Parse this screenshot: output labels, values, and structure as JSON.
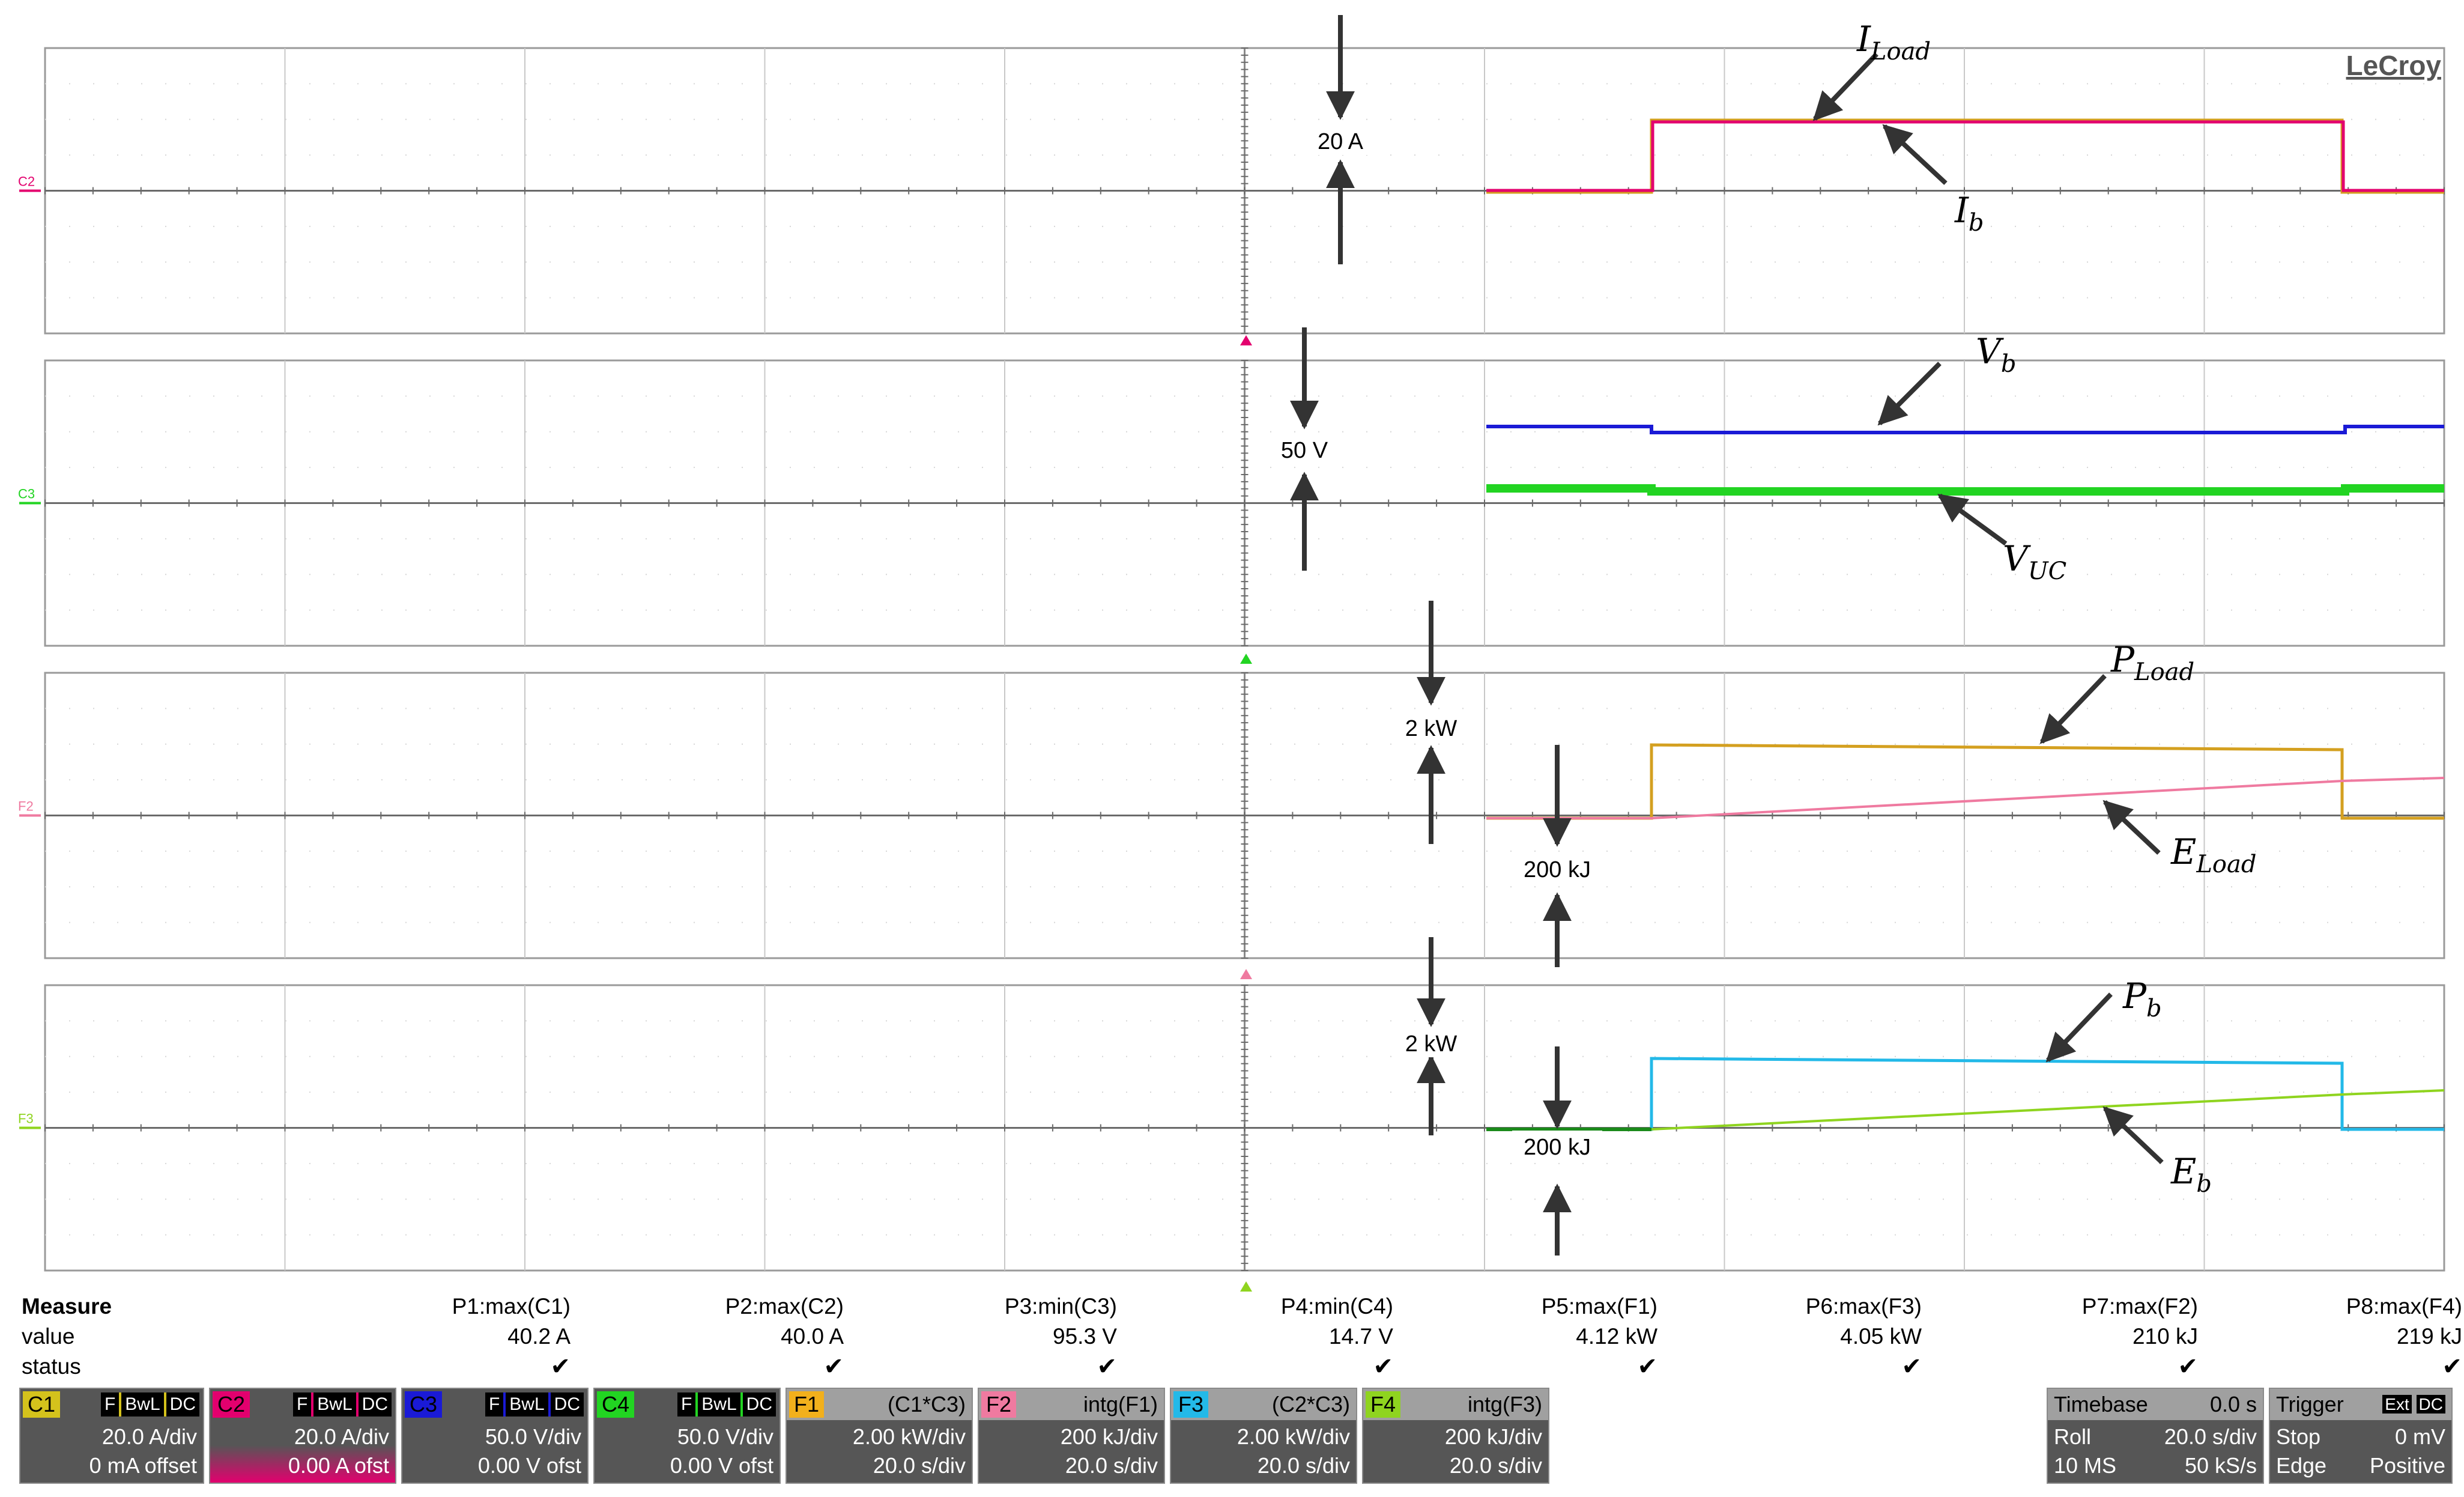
{
  "brand": "LeCroy",
  "colors": {
    "C1": "#d4c21c",
    "C2": "#e3006e",
    "C3": "#1a1ad6",
    "C4": "#22d422",
    "F1": "#f2b01c",
    "F2": "#ef7aa0",
    "F3": "#23b9e8",
    "F4": "#8fd41f",
    "grid": "#9a9a9a",
    "arrow": "#333333"
  },
  "grids": [
    {
      "label": "C2",
      "label_color": "#e3006e"
    },
    {
      "label": "C3",
      "label_color": "#22d422"
    },
    {
      "label": "F2",
      "label_color": "#ef7aa0"
    },
    {
      "label": "F3",
      "label_color": "#8fd41f"
    }
  ],
  "annotations": {
    "g1": {
      "scale": "20 A",
      "ILoad": "I",
      "ILoad_sub": "Load",
      "Ib": "I",
      "Ib_sub": "b"
    },
    "g2": {
      "scale": "50 V",
      "Vb": "V",
      "Vb_sub": "b",
      "VUC": "V",
      "VUC_sub": "UC"
    },
    "g3": {
      "scale_p": "2 kW",
      "scale_e": "200 kJ",
      "PLoad": "P",
      "PLoad_sub": "Load",
      "ELoad": "E",
      "ELoad_sub": "Load"
    },
    "g4": {
      "scale_p": "2 kW",
      "scale_e": "200 kJ",
      "Pb": "P",
      "Pb_sub": "b",
      "Eb": "E",
      "Eb_sub": "b"
    }
  },
  "measure": {
    "title": "Measure",
    "row_value": "value",
    "row_status": "status",
    "params": [
      {
        "name": "P1:max(C1)",
        "value": "40.2 A"
      },
      {
        "name": "P2:max(C2)",
        "value": "40.0 A"
      },
      {
        "name": "P3:min(C3)",
        "value": "95.3 V"
      },
      {
        "name": "P4:min(C4)",
        "value": "14.7 V"
      },
      {
        "name": "P5:max(F1)",
        "value": "4.12 kW"
      },
      {
        "name": "P6:max(F3)",
        "value": "4.05 kW"
      },
      {
        "name": "P7:max(F2)",
        "value": "210 kJ"
      },
      {
        "name": "P8:max(F4)",
        "value": "219 kJ"
      }
    ]
  },
  "channels": [
    {
      "tag": "C1",
      "flags": [
        "F",
        "BwL",
        "DC"
      ],
      "scale": "20.0 A/div",
      "offset": "0 mA offset"
    },
    {
      "tag": "C2",
      "flags": [
        "F",
        "BwL",
        "DC"
      ],
      "scale": "20.0 A/div",
      "offset": "0.00 A ofst"
    },
    {
      "tag": "C3",
      "flags": [
        "F",
        "BwL",
        "DC"
      ],
      "scale": "50.0 V/div",
      "offset": "0.00 V ofst"
    },
    {
      "tag": "C4",
      "flags": [
        "F",
        "BwL",
        "DC"
      ],
      "scale": "50.0 V/div",
      "offset": "0.00 V ofst"
    }
  ],
  "functions": [
    {
      "tag": "F1",
      "func": "(C1*C3)",
      "scale": "2.00 kW/div",
      "time": "20.0 s/div"
    },
    {
      "tag": "F2",
      "func": "intg(F1)",
      "scale": "200 kJ/div",
      "time": "20.0 s/div"
    },
    {
      "tag": "F3",
      "func": "(C2*C3)",
      "scale": "2.00 kW/div",
      "time": "20.0 s/div"
    },
    {
      "tag": "F4",
      "func": "intg(F3)",
      "scale": "200 kJ/div",
      "time": "20.0 s/div"
    }
  ],
  "timebase": {
    "title": "Timebase",
    "delay": "0.0 s",
    "mode": "Roll",
    "tdiv": "20.0 s/div",
    "mem": "10 MS",
    "rate": "50 kS/s"
  },
  "trigger": {
    "title": "Trigger",
    "src": "Ext",
    "coupling": "DC",
    "mode": "Stop",
    "level": "0 mV",
    "type": "Edge",
    "slope": "Positive"
  }
}
